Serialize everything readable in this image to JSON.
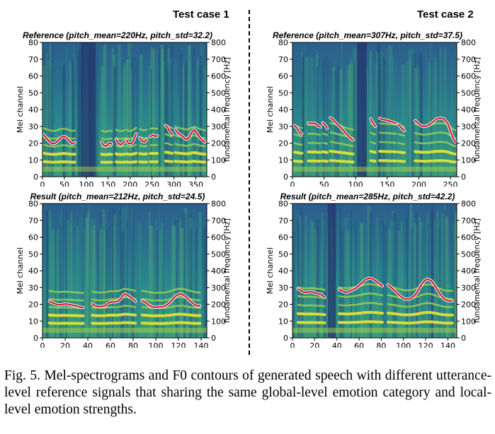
{
  "figure": {
    "columns": [
      "Test case 1",
      "Test case 2"
    ],
    "caption": "Fig. 5.  Mel-spectrograms and F0 contours of generated speech with different utterance-level reference signals that sharing the same global-level emotion category and local-level emotion strengths."
  },
  "chart_data": [
    {
      "type": "heatmap",
      "title": "Reference (pitch_mean=220Hz, pitch_std=32.2)",
      "ylabel": "Mel channel",
      "y2label": "fundamental frequency [Hz]",
      "xlim": [
        0,
        375
      ],
      "ylim": [
        0,
        80
      ],
      "y2lim": [
        0,
        800
      ],
      "xticks": [
        0,
        50,
        100,
        150,
        200,
        250,
        300,
        350
      ],
      "yticks": [
        0,
        10,
        20,
        30,
        40,
        50,
        60,
        70,
        80
      ],
      "y2ticks": [
        0,
        100,
        200,
        300,
        400,
        500,
        600,
        700,
        800
      ],
      "f0_segments": [
        [
          [
            3,
            250
          ],
          [
            8,
            232
          ],
          [
            14,
            215
          ],
          [
            20,
            200
          ],
          [
            26,
            196
          ],
          [
            32,
            206
          ],
          [
            38,
            222
          ],
          [
            44,
            236
          ],
          [
            50,
            240
          ],
          [
            56,
            230
          ],
          [
            62,
            210
          ],
          [
            68,
            196
          ],
          [
            74,
            204
          ]
        ],
        [
          [
            135,
            205
          ],
          [
            140,
            186
          ],
          [
            146,
            182
          ],
          [
            152,
            200
          ],
          [
            158,
            196
          ]
        ],
        [
          [
            168,
            222
          ],
          [
            172,
            202
          ],
          [
            178,
            190
          ],
          [
            184,
            202
          ],
          [
            188,
            212
          ]
        ],
        [
          [
            192,
            218
          ],
          [
            196,
            200
          ],
          [
            202,
            196
          ],
          [
            206,
            208
          ],
          [
            210,
            230
          ],
          [
            214,
            256
          ]
        ],
        [
          [
            222,
            232
          ],
          [
            228,
            212
          ],
          [
            233,
            208
          ],
          [
            238,
            222
          ]
        ],
        [
          [
            246,
            238
          ],
          [
            252,
            248
          ],
          [
            258,
            240
          ],
          [
            262,
            244
          ]
        ],
        [
          [
            281,
            306
          ],
          [
            286,
            292
          ],
          [
            290,
            270
          ],
          [
            296,
            252
          ]
        ],
        [
          [
            303,
            282
          ],
          [
            309,
            260
          ],
          [
            315,
            248
          ],
          [
            322,
            236
          ],
          [
            328,
            222
          ],
          [
            334,
            230
          ],
          [
            340,
            262
          ],
          [
            346,
            280
          ],
          [
            352,
            262
          ],
          [
            358,
            236
          ],
          [
            364,
            220
          ],
          [
            371,
            206
          ]
        ]
      ]
    },
    {
      "type": "heatmap",
      "title": "Reference (pitch_mean=307Hz, pitch_std=37.5)",
      "ylabel": "Mel channel",
      "y2label": "fundamental frequency [Hz]",
      "xlim": [
        0,
        260
      ],
      "ylim": [
        0,
        80
      ],
      "y2lim": [
        0,
        800
      ],
      "xticks": [
        0,
        50,
        100,
        150,
        200,
        250
      ],
      "yticks": [
        0,
        10,
        20,
        30,
        40,
        50,
        60,
        70,
        80
      ],
      "y2ticks": [
        0,
        100,
        200,
        300,
        400,
        500,
        600,
        700,
        800
      ],
      "f0_segments": [
        [
          [
            3,
            305
          ],
          [
            7,
            290
          ],
          [
            11,
            264
          ],
          [
            15,
            256
          ]
        ],
        [
          [
            25,
            320
          ],
          [
            30,
            316
          ],
          [
            36,
            318
          ],
          [
            40,
            302
          ],
          [
            44,
            296
          ]
        ],
        [
          [
            48,
            322
          ],
          [
            53,
            302
          ],
          [
            55,
            288
          ]
        ],
        [
          [
            60,
            352
          ],
          [
            65,
            338
          ],
          [
            70,
            316
          ],
          [
            75,
            298
          ],
          [
            80,
            280
          ],
          [
            86,
            252
          ],
          [
            91,
            232
          ],
          [
            96,
            218
          ]
        ],
        [
          [
            124,
            345
          ],
          [
            128,
            316
          ],
          [
            131,
            300
          ]
        ],
        [
          [
            138,
            348
          ],
          [
            143,
            340
          ],
          [
            148,
            338
          ],
          [
            153,
            332
          ],
          [
            158,
            326
          ],
          [
            164,
            318
          ]
        ],
        [
          [
            168,
            312
          ],
          [
            172,
            292
          ],
          [
            177,
            274
          ]
        ],
        [
          [
            194,
            335
          ],
          [
            199,
            318
          ],
          [
            204,
            302
          ],
          [
            210,
            300
          ],
          [
            216,
            308
          ],
          [
            222,
            326
          ],
          [
            228,
            344
          ],
          [
            234,
            350
          ],
          [
            240,
            344
          ],
          [
            246,
            316
          ],
          [
            250,
            272
          ],
          [
            254,
            230
          ],
          [
            258,
            208
          ]
        ]
      ]
    },
    {
      "type": "heatmap",
      "title": "Result (pitch_mean=212Hz, pitch_std=24.5)",
      "ylabel": "Mel channel",
      "y2label": "fundamental frequency [Hz]",
      "xlim": [
        0,
        145
      ],
      "ylim": [
        0,
        80
      ],
      "y2lim": [
        0,
        800
      ],
      "xticks": [
        0,
        20,
        40,
        60,
        80,
        100,
        120,
        140
      ],
      "yticks": [
        0,
        10,
        20,
        30,
        40,
        50,
        60,
        70,
        80
      ],
      "y2ticks": [
        0,
        100,
        200,
        300,
        400,
        500,
        600,
        700,
        800
      ],
      "f0_segments": [
        [
          [
            6,
            218
          ],
          [
            9,
            210
          ],
          [
            12,
            200
          ],
          [
            15,
            196
          ],
          [
            18,
            200
          ],
          [
            21,
            202
          ],
          [
            24,
            198
          ],
          [
            27,
            194
          ],
          [
            30,
            190
          ],
          [
            33,
            184
          ],
          [
            36,
            180
          ]
        ],
        [
          [
            44,
            204
          ],
          [
            47,
            190
          ],
          [
            50,
            186
          ],
          [
            53,
            188
          ],
          [
            56,
            194
          ],
          [
            58,
            208
          ],
          [
            61,
            214
          ],
          [
            64,
            214
          ],
          [
            67,
            220
          ],
          [
            69,
            232
          ],
          [
            71,
            254
          ],
          [
            73,
            262
          ],
          [
            76,
            250
          ],
          [
            79,
            236
          ],
          [
            82,
            218
          ]
        ],
        [
          [
            88,
            222
          ],
          [
            91,
            210
          ],
          [
            94,
            194
          ],
          [
            97,
            184
          ],
          [
            100,
            182
          ],
          [
            103,
            186
          ],
          [
            106,
            184
          ],
          [
            109,
            194
          ],
          [
            112,
            208
          ],
          [
            115,
            232
          ],
          [
            118,
            252
          ],
          [
            121,
            262
          ],
          [
            124,
            258
          ],
          [
            127,
            242
          ],
          [
            130,
            222
          ],
          [
            133,
            204
          ],
          [
            136,
            192
          ],
          [
            139,
            190
          ]
        ]
      ]
    },
    {
      "type": "heatmap",
      "title": "Result (pitch_mean=285Hz, pitch_std=42.2)",
      "ylabel": "Mel channel",
      "y2label": "fundamental frequency [Hz]",
      "xlim": [
        0,
        148
      ],
      "ylim": [
        0,
        80
      ],
      "y2lim": [
        0,
        800
      ],
      "xticks": [
        0,
        20,
        40,
        60,
        80,
        100,
        120,
        140
      ],
      "yticks": [
        0,
        10,
        20,
        30,
        40,
        50,
        60,
        70,
        80
      ],
      "y2ticks": [
        0,
        100,
        200,
        300,
        400,
        500,
        600,
        700,
        800
      ],
      "f0_segments": [
        [
          [
            5,
            292
          ],
          [
            8,
            280
          ],
          [
            11,
            270
          ],
          [
            14,
            272
          ],
          [
            17,
            276
          ],
          [
            20,
            268
          ],
          [
            23,
            262
          ],
          [
            26,
            258
          ],
          [
            29,
            240
          ]
        ],
        [
          [
            42,
            290
          ],
          [
            45,
            278
          ],
          [
            48,
            272
          ],
          [
            51,
            276
          ],
          [
            54,
            286
          ],
          [
            57,
            296
          ],
          [
            60,
            312
          ],
          [
            63,
            330
          ],
          [
            66,
            348
          ],
          [
            69,
            356
          ],
          [
            72,
            352
          ],
          [
            75,
            340
          ],
          [
            78,
            322
          ],
          [
            81,
            310
          ]
        ],
        [
          [
            86,
            316
          ],
          [
            89,
            300
          ],
          [
            92,
            282
          ],
          [
            95,
            262
          ],
          [
            98,
            244
          ],
          [
            101,
            232
          ],
          [
            104,
            230
          ],
          [
            107,
            236
          ],
          [
            110,
            252
          ],
          [
            113,
            280
          ],
          [
            116,
            316
          ],
          [
            119,
            342
          ],
          [
            122,
            350
          ],
          [
            125,
            340
          ],
          [
            128,
            314
          ],
          [
            131,
            282
          ],
          [
            134,
            252
          ],
          [
            137,
            230
          ],
          [
            140,
            222
          ],
          [
            144,
            220
          ]
        ]
      ]
    }
  ]
}
